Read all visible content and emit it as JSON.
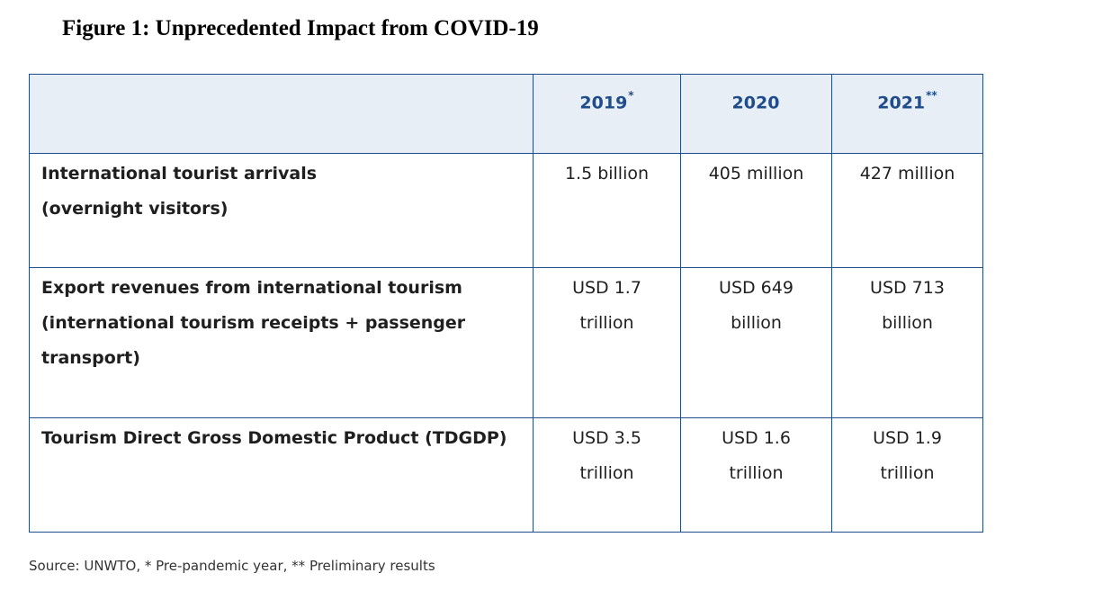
{
  "figure": {
    "title": "Figure 1: Unprecedented Impact from COVID-19"
  },
  "table": {
    "headers": [
      {
        "year": "2019",
        "mark": "*"
      },
      {
        "year": "2020",
        "mark": ""
      },
      {
        "year": "2021",
        "mark": "**"
      }
    ],
    "rows": [
      {
        "label_lines": [
          "International tourist arrivals",
          "(overnight visitors)"
        ],
        "values": [
          [
            "1.5 billion"
          ],
          [
            "405 million"
          ],
          [
            "427 million"
          ]
        ]
      },
      {
        "label_lines": [
          "Export revenues from international tourism",
          "(international tourism receipts + passenger",
          "transport)"
        ],
        "values": [
          [
            "USD 1.7",
            "trillion"
          ],
          [
            "USD 649",
            "billion"
          ],
          [
            "USD 713",
            "billion"
          ]
        ]
      },
      {
        "label_lines": [
          "Tourism Direct Gross Domestic Product (TDGDP)"
        ],
        "values": [
          [
            "USD 3.5",
            "trillion"
          ],
          [
            "USD 1.6",
            "trillion"
          ],
          [
            "USD 1.9",
            "trillion"
          ]
        ]
      }
    ]
  },
  "source": "Source: UNWTO, * Pre-pandemic year, ** Preliminary results",
  "colors": {
    "header_text": "#1f4c8b",
    "header_bg": "#e8eef6",
    "border": "#1f4c8b"
  }
}
